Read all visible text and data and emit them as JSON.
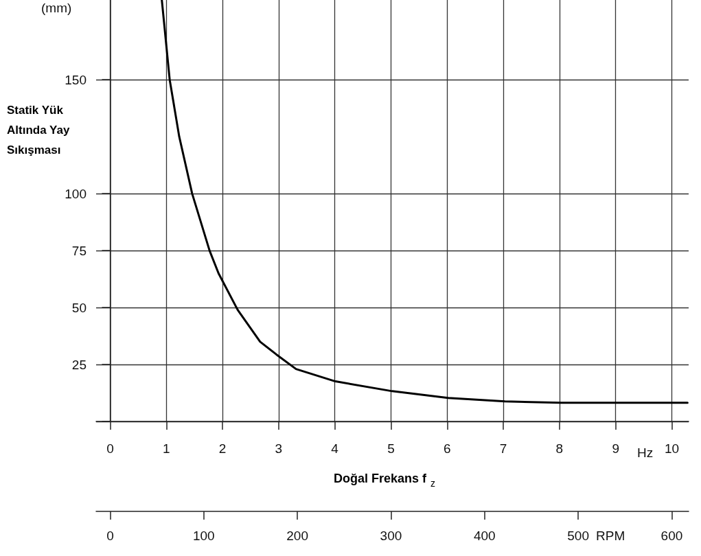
{
  "chart_data": {
    "type": "line",
    "xlabel": "Doğal Frekans f$_{z}$",
    "ylabel": "Statik Yük Altında Yay Sıkışması",
    "annotations": [
      "(mm)",
      "Hz",
      "RPM"
    ],
    "x": [
      0.92,
      1.06,
      1.23,
      1.46,
      1.77,
      1.93,
      2.27,
      2.67,
      2.96,
      3.31,
      4.01,
      5.02,
      6.02,
      7.03,
      8.03,
      9.03,
      10.28
    ],
    "series": [
      {
        "color": "#000000",
        "values": [
          185,
          150,
          125,
          100,
          75,
          65,
          49,
          35,
          29.4,
          23,
          17.6,
          13.3,
          10.3,
          8.8,
          8.2,
          8.2,
          8.2
        ]
      }
    ],
    "xlim": [
      -0.25,
      10.3
    ],
    "xticks": [
      0,
      1,
      2,
      3,
      4,
      5,
      6,
      7,
      8,
      9,
      10
    ],
    "x2lim": [
      -15,
      618
    ],
    "x2ticks": [
      0,
      100,
      200,
      300,
      400,
      500,
      600
    ],
    "ylim": [
      0,
      185
    ],
    "yticks": [
      {
        "value": 0,
        "label": null
      },
      25,
      50,
      75,
      100,
      150
    ],
    "grid": true,
    "marker": "none",
    "line_style": "solid"
  }
}
